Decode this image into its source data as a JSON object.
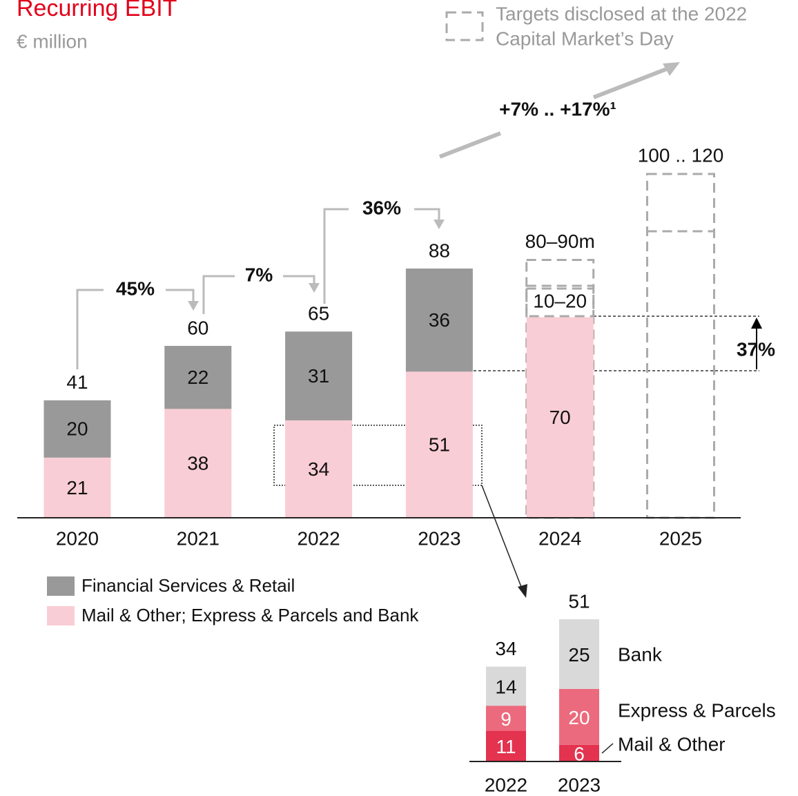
{
  "title": "Recurring EBIT",
  "subtitle": "€ million",
  "target_legend": [
    "Targets disclosed at the 2022",
    "Capital Market’s Day"
  ],
  "chart_data": [
    {
      "type": "stacked_bar",
      "categories": [
        "2020",
        "2021",
        "2022",
        "2023",
        "2024",
        "2025"
      ],
      "series": [
        {
          "name": "Mail & Other; Express & Parcels and Bank",
          "color": "#f9cdd5",
          "values": [
            21,
            38,
            34,
            51,
            70,
            null
          ]
        },
        {
          "name": "Financial Services & Retail",
          "color": "#999999",
          "values": [
            20,
            22,
            31,
            36,
            null,
            null
          ]
        }
      ],
      "totals": [
        41,
        60,
        65,
        88,
        null,
        null
      ],
      "targets": {
        "labels": [
          null,
          null,
          null,
          null,
          "80–90m",
          "100 .. 120"
        ],
        "low": [
          null,
          null,
          null,
          null,
          80,
          100
        ],
        "high": [
          null,
          null,
          null,
          null,
          90,
          120
        ]
      },
      "fs_target_label": "10–20",
      "growth": [
        "45%",
        "7%",
        "36%"
      ],
      "target_growth": "+7% .. +17%¹",
      "mail_growth": "37%"
    },
    {
      "type": "stacked_bar",
      "categories": [
        "2022",
        "2023"
      ],
      "series": [
        {
          "name": "Mail & Other",
          "color": "#e3334f",
          "values": [
            11,
            6
          ]
        },
        {
          "name": "Express & Parcels",
          "color": "#ec6a7d",
          "values": [
            9,
            20
          ]
        },
        {
          "name": "Bank",
          "color": "#d9d9d9",
          "values": [
            14,
            25
          ]
        }
      ],
      "totals": [
        34,
        51
      ]
    }
  ]
}
